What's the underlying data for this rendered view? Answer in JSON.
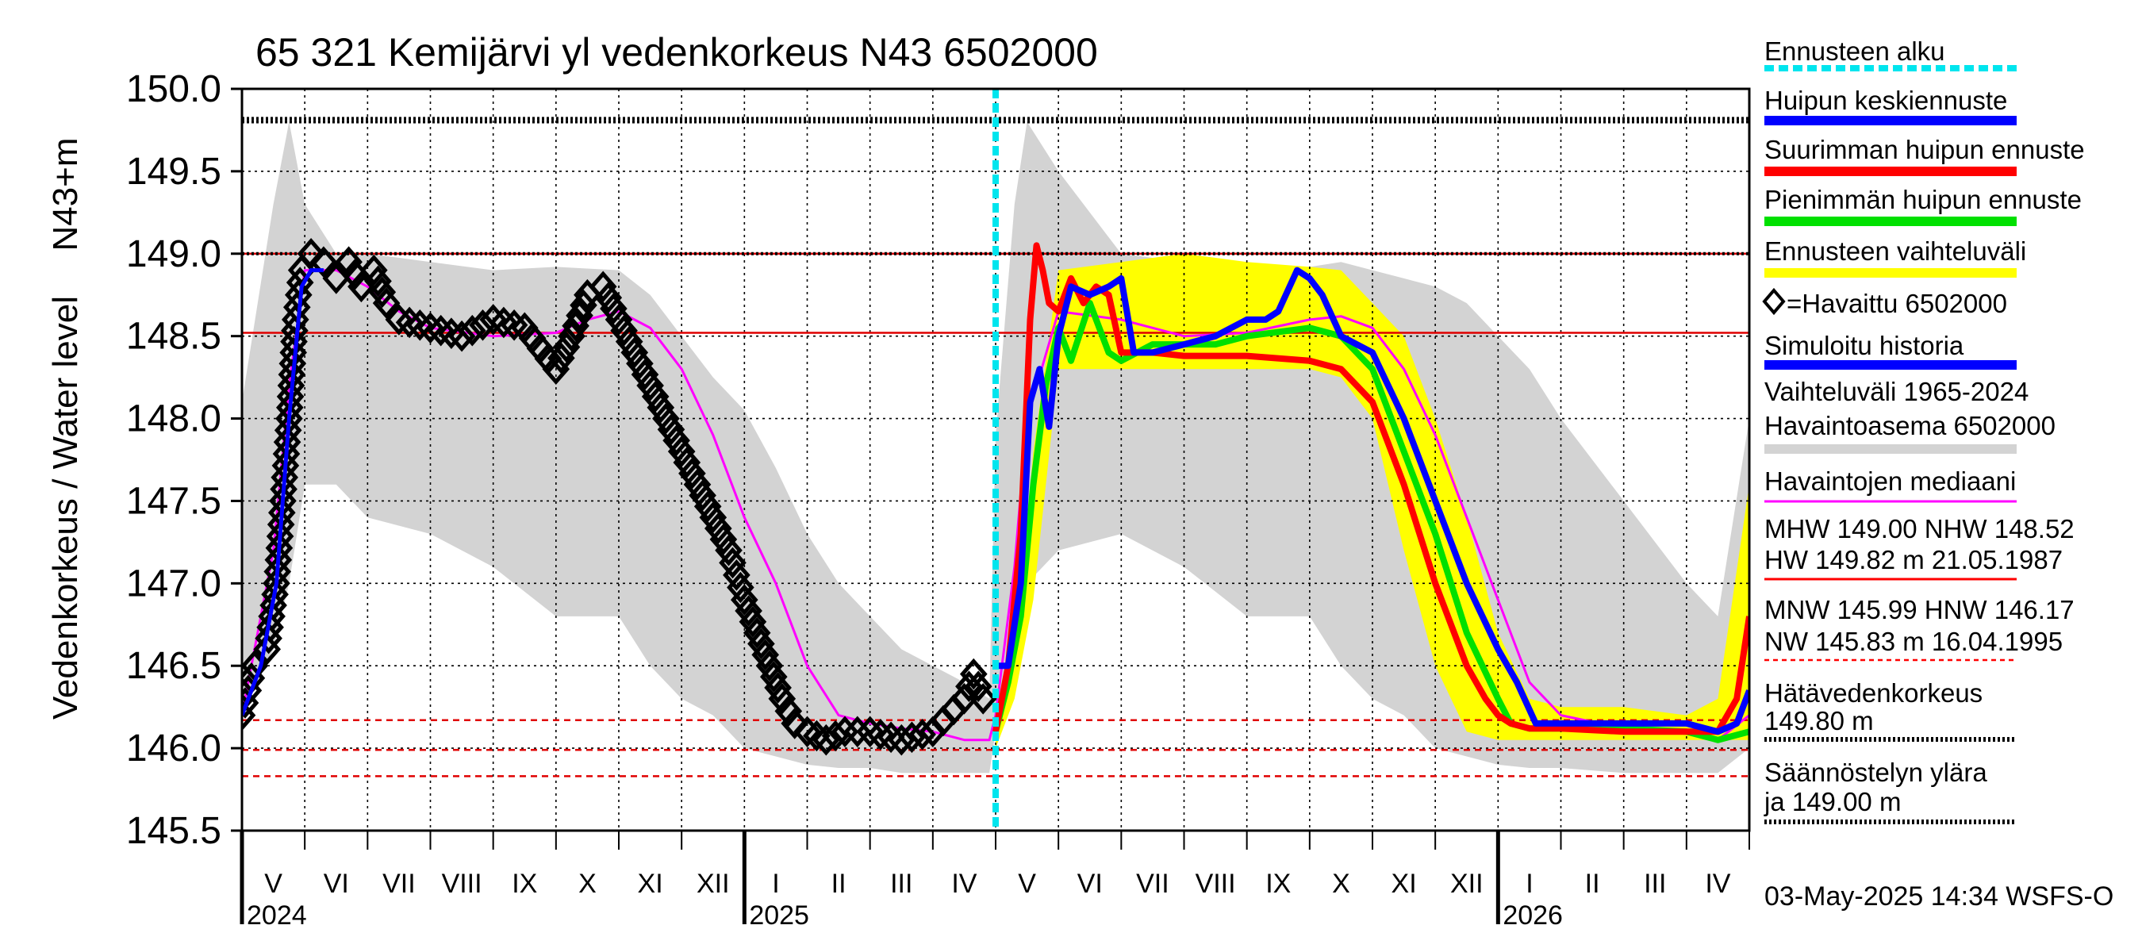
{
  "chart_data": {
    "type": "line",
    "title": "65 321 Kemijärvi yl vedenkorkeus N43 6502000",
    "ylabel": "Vedenkorkeus / Water level",
    "yunit": "N43+m",
    "ylim": [
      145.5,
      150.0
    ],
    "yticks": [
      "145.5",
      "146.0",
      "146.5",
      "147.0",
      "147.5",
      "148.0",
      "148.5",
      "149.0",
      "149.5",
      "150.0"
    ],
    "xlim": [
      0,
      24
    ],
    "months": [
      "V",
      "VI",
      "VII",
      "VIII",
      "IX",
      "X",
      "XI",
      "XII",
      "I",
      "II",
      "III",
      "IV",
      "V",
      "VI",
      "VII",
      "VIII",
      "IX",
      "X",
      "XI",
      "XII",
      "I",
      "II",
      "III",
      "IV"
    ],
    "years": [
      {
        "label": "2024",
        "at": 0
      },
      {
        "label": "2025",
        "at": 8
      },
      {
        "label": "2026",
        "at": 20
      }
    ],
    "forecast_start": 12.0,
    "reference_lines": [
      {
        "name": "HW",
        "value": 149.82,
        "style": "dotted",
        "color": "#000000"
      },
      {
        "name": "MHW",
        "value": 149.0,
        "style": "solid",
        "color": "#d00000"
      },
      {
        "name": "NHW",
        "value": 148.52,
        "style": "solid",
        "color": "#e00000"
      },
      {
        "name": "HNW",
        "value": 146.17,
        "style": "dashed",
        "color": "#e00000"
      },
      {
        "name": "MNW",
        "value": 145.99,
        "style": "dashed",
        "color": "#e00000"
      },
      {
        "name": "NW",
        "value": 145.83,
        "style": "dashed",
        "color": "#e00000"
      },
      {
        "name": "Hätävedenkorkeus",
        "value": 149.8,
        "style": "dotted",
        "color": "#000000"
      },
      {
        "name": "Säännöstelyn yläraja",
        "value": 149.0,
        "style": "dotted",
        "color": "#000000"
      }
    ],
    "series": [
      {
        "name": "Vaihteluväli 1965-2024",
        "kind": "band",
        "color": "#d3d3d3",
        "x": [
          0,
          0.5,
          0.75,
          1,
          1.5,
          2,
          3,
          4,
          5,
          6,
          6.5,
          7,
          7.5,
          8,
          8.5,
          9,
          9.5,
          10,
          10.5,
          11,
          11.5,
          11.9,
          12,
          12.3,
          12.5,
          13,
          14,
          15,
          16,
          17,
          17.5,
          18,
          18.5,
          19,
          19.5,
          20,
          20.5,
          21,
          22,
          23,
          23.5,
          24
        ],
        "upper": [
          148.1,
          149.3,
          149.8,
          149.3,
          149.0,
          149.0,
          148.95,
          148.9,
          148.92,
          148.9,
          148.75,
          148.5,
          148.25,
          148.05,
          147.7,
          147.3,
          147.0,
          146.8,
          146.6,
          146.5,
          146.4,
          146.3,
          147.9,
          149.3,
          149.8,
          149.5,
          149.0,
          148.95,
          148.9,
          148.92,
          148.95,
          148.9,
          148.85,
          148.8,
          148.7,
          148.5,
          148.3,
          148.0,
          147.5,
          147.0,
          146.8,
          148.0
        ],
        "lower": [
          146.2,
          146.6,
          147.0,
          147.6,
          147.6,
          147.4,
          147.3,
          147.1,
          146.8,
          146.8,
          146.5,
          146.3,
          146.2,
          146.0,
          145.95,
          145.9,
          145.88,
          145.88,
          145.85,
          145.85,
          145.85,
          145.85,
          146.1,
          146.6,
          147.0,
          147.2,
          147.3,
          147.1,
          146.8,
          146.8,
          146.5,
          146.3,
          146.2,
          146.0,
          145.95,
          145.9,
          145.88,
          145.88,
          145.85,
          145.85,
          145.85,
          146.0
        ]
      },
      {
        "name": "Ennusteen vaihteluväli",
        "kind": "band",
        "color": "#ffff00",
        "x": [
          12,
          12.3,
          12.6,
          13,
          14,
          15,
          16,
          17,
          17.5,
          18,
          18.5,
          19,
          19.5,
          20,
          20.5,
          21,
          22,
          23,
          23.5,
          24
        ],
        "upper": [
          146.1,
          146.5,
          147.8,
          148.9,
          148.95,
          149.0,
          148.95,
          148.92,
          148.9,
          148.7,
          148.5,
          148.0,
          147.4,
          146.7,
          146.3,
          146.25,
          146.25,
          146.2,
          146.3,
          147.6
        ],
        "lower": [
          146.0,
          146.3,
          146.9,
          148.3,
          148.3,
          148.3,
          148.3,
          148.3,
          148.25,
          148.0,
          147.2,
          146.5,
          146.1,
          146.05,
          146.05,
          146.05,
          146.05,
          146.05,
          146.05,
          146.05
        ]
      },
      {
        "name": "Havaintojen mediaani",
        "kind": "line",
        "color": "#ff00ff",
        "x": [
          0,
          0.5,
          0.75,
          1,
          1.5,
          2,
          2.5,
          3,
          4,
          5,
          5.5,
          6,
          6.5,
          7,
          7.5,
          8,
          8.5,
          9,
          9.5,
          10,
          10.5,
          11,
          11.5,
          11.9,
          12,
          12.3,
          12.5,
          13,
          14,
          15,
          16,
          17,
          17.5,
          18,
          18.5,
          19,
          19.5,
          20,
          20.5,
          21,
          22,
          23,
          23.5,
          24
        ],
        "y": [
          146.2,
          147.2,
          148.2,
          148.9,
          148.9,
          148.8,
          148.65,
          148.55,
          148.5,
          148.52,
          148.6,
          148.65,
          148.55,
          148.3,
          147.9,
          147.4,
          147.0,
          146.5,
          146.2,
          146.15,
          146.12,
          146.1,
          146.05,
          146.05,
          146.2,
          147.1,
          148.0,
          148.65,
          148.6,
          148.5,
          148.52,
          148.6,
          148.62,
          148.55,
          148.3,
          147.9,
          147.4,
          146.9,
          146.4,
          146.2,
          146.12,
          146.1,
          146.05,
          146.2
        ]
      },
      {
        "name": "Havaittu 6502000",
        "kind": "diamonds",
        "color": "#000000",
        "x": [
          0,
          0.2,
          0.4,
          0.55,
          0.65,
          0.75,
          0.85,
          0.95,
          1.1,
          1.3,
          1.5,
          1.7,
          1.9,
          2.1,
          2.3,
          2.5,
          3,
          3.5,
          4,
          4.5,
          5,
          5.25,
          5.5,
          5.75,
          6,
          6.25,
          6.5,
          6.75,
          7,
          7.25,
          7.5,
          7.75,
          8,
          8.2,
          8.4,
          8.6,
          8.8,
          9,
          9.3,
          9.6,
          10,
          10.5,
          11,
          11.5,
          11.65,
          11.8,
          11.9
        ],
        "y": [
          146.2,
          146.5,
          146.6,
          147.0,
          147.5,
          148.0,
          148.6,
          148.9,
          149.0,
          148.95,
          148.85,
          148.95,
          148.8,
          148.9,
          148.7,
          148.6,
          148.55,
          148.5,
          148.6,
          148.55,
          148.3,
          148.5,
          148.75,
          148.8,
          148.6,
          148.4,
          148.2,
          148.0,
          147.8,
          147.6,
          147.4,
          147.2,
          146.9,
          146.7,
          146.5,
          146.3,
          146.15,
          146.1,
          146.05,
          146.1,
          146.1,
          146.05,
          146.1,
          146.3,
          146.45,
          146.3,
          146.2
        ]
      },
      {
        "name": "Simuloitu historia",
        "kind": "line",
        "color": "#0000ff",
        "x": [
          0,
          0.3,
          0.55,
          0.75,
          0.95,
          1.1,
          1.3
        ],
        "y": [
          146.2,
          146.5,
          147.0,
          148.0,
          148.8,
          148.9,
          148.9
        ]
      },
      {
        "name": "Pienimmän huipun ennuste",
        "kind": "line",
        "color": "#00e000",
        "x": [
          12,
          12.2,
          12.4,
          12.6,
          12.8,
          13,
          13.2,
          13.5,
          13.8,
          14,
          14.5,
          15,
          15.5,
          16,
          17,
          17.5,
          18,
          18.5,
          19,
          19.5,
          20,
          20.2,
          20.5,
          21,
          22,
          23,
          23.5,
          24
        ],
        "y": [
          146.1,
          146.4,
          146.8,
          147.6,
          148.2,
          148.55,
          148.35,
          148.7,
          148.4,
          148.35,
          148.45,
          148.45,
          148.45,
          148.5,
          148.55,
          148.5,
          148.3,
          147.8,
          147.3,
          146.7,
          146.3,
          146.15,
          146.12,
          146.12,
          146.12,
          146.1,
          146.05,
          146.1
        ]
      },
      {
        "name": "Suurimman huipun ennuste",
        "kind": "line",
        "color": "#ff0000",
        "x": [
          12,
          12.2,
          12.4,
          12.55,
          12.65,
          12.75,
          12.85,
          13,
          13.2,
          13.4,
          13.6,
          13.8,
          14,
          14.5,
          15,
          16,
          17,
          17.5,
          18,
          18.5,
          19,
          19.5,
          19.8,
          20,
          20.2,
          20.5,
          21,
          22,
          23,
          23.5,
          23.8,
          24
        ],
        "y": [
          146.1,
          146.5,
          147.3,
          148.6,
          149.05,
          148.9,
          148.7,
          148.65,
          148.85,
          148.7,
          148.8,
          148.75,
          148.4,
          148.4,
          148.38,
          148.38,
          148.35,
          148.3,
          148.1,
          147.6,
          147.0,
          146.5,
          146.3,
          146.2,
          146.15,
          146.12,
          146.12,
          146.1,
          146.1,
          146.1,
          146.3,
          146.8
        ]
      },
      {
        "name": "Huipun keskiennuste",
        "kind": "line",
        "color": "#0000ff",
        "x": [
          12,
          12.2,
          12.4,
          12.55,
          12.7,
          12.85,
          13,
          13.2,
          13.5,
          13.8,
          14,
          14.2,
          14.5,
          15,
          15.5,
          16,
          16.3,
          16.5,
          16.8,
          17,
          17.2,
          17.5,
          18,
          18.5,
          19,
          19.5,
          20,
          20.3,
          20.6,
          21,
          22,
          23,
          23.5,
          23.8,
          24
        ],
        "y": [
          146.5,
          146.5,
          147.0,
          148.1,
          148.3,
          147.95,
          148.5,
          148.8,
          148.75,
          148.8,
          148.85,
          148.4,
          148.4,
          148.45,
          148.5,
          148.6,
          148.6,
          148.65,
          148.9,
          148.85,
          148.75,
          148.5,
          148.4,
          148.0,
          147.5,
          147.0,
          146.6,
          146.4,
          146.15,
          146.15,
          146.15,
          146.15,
          146.1,
          146.15,
          146.35
        ]
      }
    ],
    "legend": [
      {
        "label": "Ennusteen alku",
        "color": "#00e5ee",
        "style": "dashed"
      },
      {
        "label": "Huipun keskiennuste",
        "color": "#0000ff",
        "style": "thick"
      },
      {
        "label": "Suurimman huipun ennuste",
        "color": "#ff0000",
        "style": "thick"
      },
      {
        "label": "Pienimmän huipun ennuste",
        "color": "#00e000",
        "style": "thick"
      },
      {
        "label": "Ennusteen vaihteluväli",
        "color": "#ffff00",
        "style": "thick"
      },
      {
        "label": "=Havaittu 6502000",
        "color": "#000000",
        "style": "diamond"
      },
      {
        "label": "Simuloitu historia",
        "color": "#0000ff",
        "style": "thick"
      },
      {
        "label": "Vaihteluväli 1965-2024\n Havaintoasema 6502000",
        "color": "#d3d3d3",
        "style": "thick"
      },
      {
        "label": "Havaintojen mediaani",
        "color": "#ff00ff",
        "style": "line"
      },
      {
        "label": "MHW 149.00 NHW 148.52\nHW 149.82 m 21.05.1987",
        "color": "#ff0000",
        "style": "line"
      },
      {
        "label": "MNW 145.99 HNW 146.17\nNW 145.83 m 16.04.1995",
        "color": "#ff0000",
        "style": "dashed-red"
      },
      {
        "label": "Hätävedenkorkeus\n  149.80 m",
        "color": "#000000",
        "style": "dotted"
      },
      {
        "label": "Säännöstelyn ylära\nja  149.00 m",
        "color": "#000000",
        "style": "dotted"
      }
    ],
    "footer": "03-May-2025 14:34 WSFS-O"
  }
}
